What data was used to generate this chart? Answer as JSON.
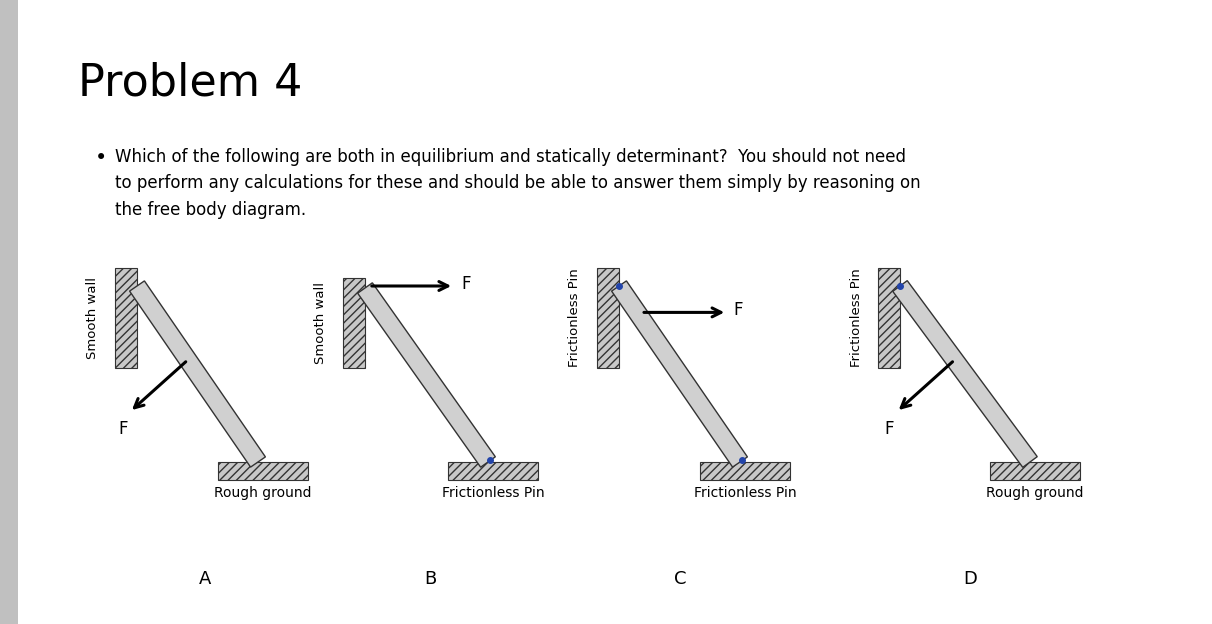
{
  "title": "Problem 4",
  "bullet_text": "Which of the following are both in equilibrium and statically determinant?  You should not need\nto perform any calculations for these and should be able to answer them simply by reasoning on\nthe free body diagram.",
  "labels": [
    "A",
    "B",
    "C",
    "D"
  ],
  "page_color": "#ffffff",
  "beam_color": "#d0d0d0",
  "beam_edge_color": "#333333",
  "pin_color": "#2244aa",
  "title_fontsize": 32,
  "bullet_fontsize": 12,
  "support_label_fontsize": 10,
  "f_label_fontsize": 12,
  "label_fontsize": 13,
  "sidebar_color": "#c8c8c8",
  "hatch_face": "#c8c8c8",
  "wall_face": "#cccccc"
}
